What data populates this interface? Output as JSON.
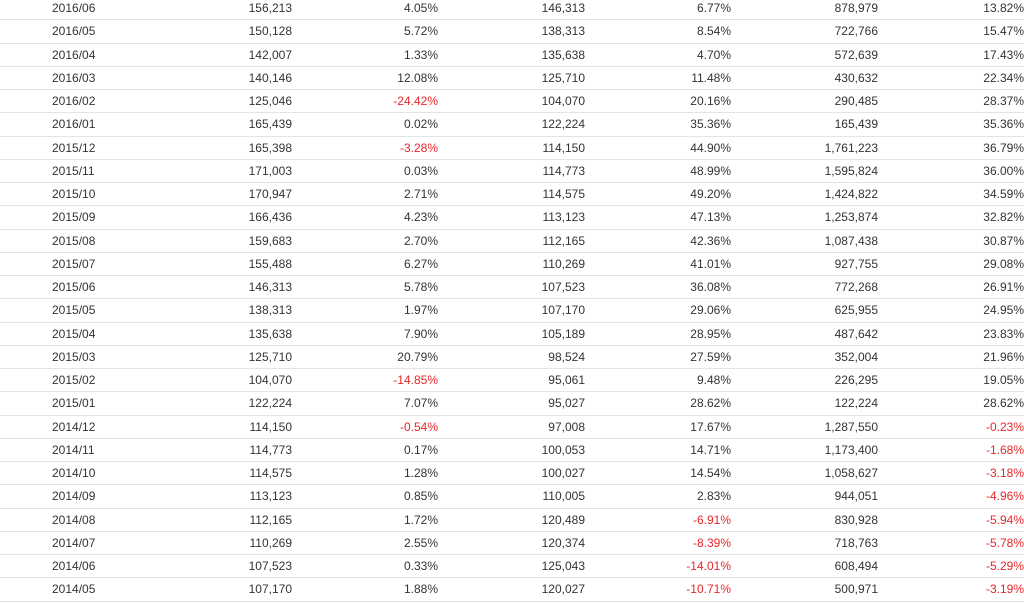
{
  "table": {
    "negative_color": "#e8262a",
    "rows": [
      [
        "2016/06",
        "156,213",
        "4.05%",
        "146,313",
        "6.77%",
        "878,979",
        "13.82%"
      ],
      [
        "2016/05",
        "150,128",
        "5.72%",
        "138,313",
        "8.54%",
        "722,766",
        "15.47%"
      ],
      [
        "2016/04",
        "142,007",
        "1.33%",
        "135,638",
        "4.70%",
        "572,639",
        "17.43%"
      ],
      [
        "2016/03",
        "140,146",
        "12.08%",
        "125,710",
        "11.48%",
        "430,632",
        "22.34%"
      ],
      [
        "2016/02",
        "125,046",
        "-24.42%",
        "104,070",
        "20.16%",
        "290,485",
        "28.37%"
      ],
      [
        "2016/01",
        "165,439",
        "0.02%",
        "122,224",
        "35.36%",
        "165,439",
        "35.36%"
      ],
      [
        "2015/12",
        "165,398",
        "-3.28%",
        "114,150",
        "44.90%",
        "1,761,223",
        "36.79%"
      ],
      [
        "2015/11",
        "171,003",
        "0.03%",
        "114,773",
        "48.99%",
        "1,595,824",
        "36.00%"
      ],
      [
        "2015/10",
        "170,947",
        "2.71%",
        "114,575",
        "49.20%",
        "1,424,822",
        "34.59%"
      ],
      [
        "2015/09",
        "166,436",
        "4.23%",
        "113,123",
        "47.13%",
        "1,253,874",
        "32.82%"
      ],
      [
        "2015/08",
        "159,683",
        "2.70%",
        "112,165",
        "42.36%",
        "1,087,438",
        "30.87%"
      ],
      [
        "2015/07",
        "155,488",
        "6.27%",
        "110,269",
        "41.01%",
        "927,755",
        "29.08%"
      ],
      [
        "2015/06",
        "146,313",
        "5.78%",
        "107,523",
        "36.08%",
        "772,268",
        "26.91%"
      ],
      [
        "2015/05",
        "138,313",
        "1.97%",
        "107,170",
        "29.06%",
        "625,955",
        "24.95%"
      ],
      [
        "2015/04",
        "135,638",
        "7.90%",
        "105,189",
        "28.95%",
        "487,642",
        "23.83%"
      ],
      [
        "2015/03",
        "125,710",
        "20.79%",
        "98,524",
        "27.59%",
        "352,004",
        "21.96%"
      ],
      [
        "2015/02",
        "104,070",
        "-14.85%",
        "95,061",
        "9.48%",
        "226,295",
        "19.05%"
      ],
      [
        "2015/01",
        "122,224",
        "7.07%",
        "95,027",
        "28.62%",
        "122,224",
        "28.62%"
      ],
      [
        "2014/12",
        "114,150",
        "-0.54%",
        "97,008",
        "17.67%",
        "1,287,550",
        "-0.23%"
      ],
      [
        "2014/11",
        "114,773",
        "0.17%",
        "100,053",
        "14.71%",
        "1,173,400",
        "-1.68%"
      ],
      [
        "2014/10",
        "114,575",
        "1.28%",
        "100,027",
        "14.54%",
        "1,058,627",
        "-3.18%"
      ],
      [
        "2014/09",
        "113,123",
        "0.85%",
        "110,005",
        "2.83%",
        "944,051",
        "-4.96%"
      ],
      [
        "2014/08",
        "112,165",
        "1.72%",
        "120,489",
        "-6.91%",
        "830,928",
        "-5.94%"
      ],
      [
        "2014/07",
        "110,269",
        "2.55%",
        "120,374",
        "-8.39%",
        "718,763",
        "-5.78%"
      ],
      [
        "2014/06",
        "107,523",
        "0.33%",
        "125,043",
        "-14.01%",
        "608,494",
        "-5.29%"
      ],
      [
        "2014/05",
        "107,170",
        "1.88%",
        "120,027",
        "-10.71%",
        "500,971",
        "-3.19%"
      ]
    ]
  }
}
